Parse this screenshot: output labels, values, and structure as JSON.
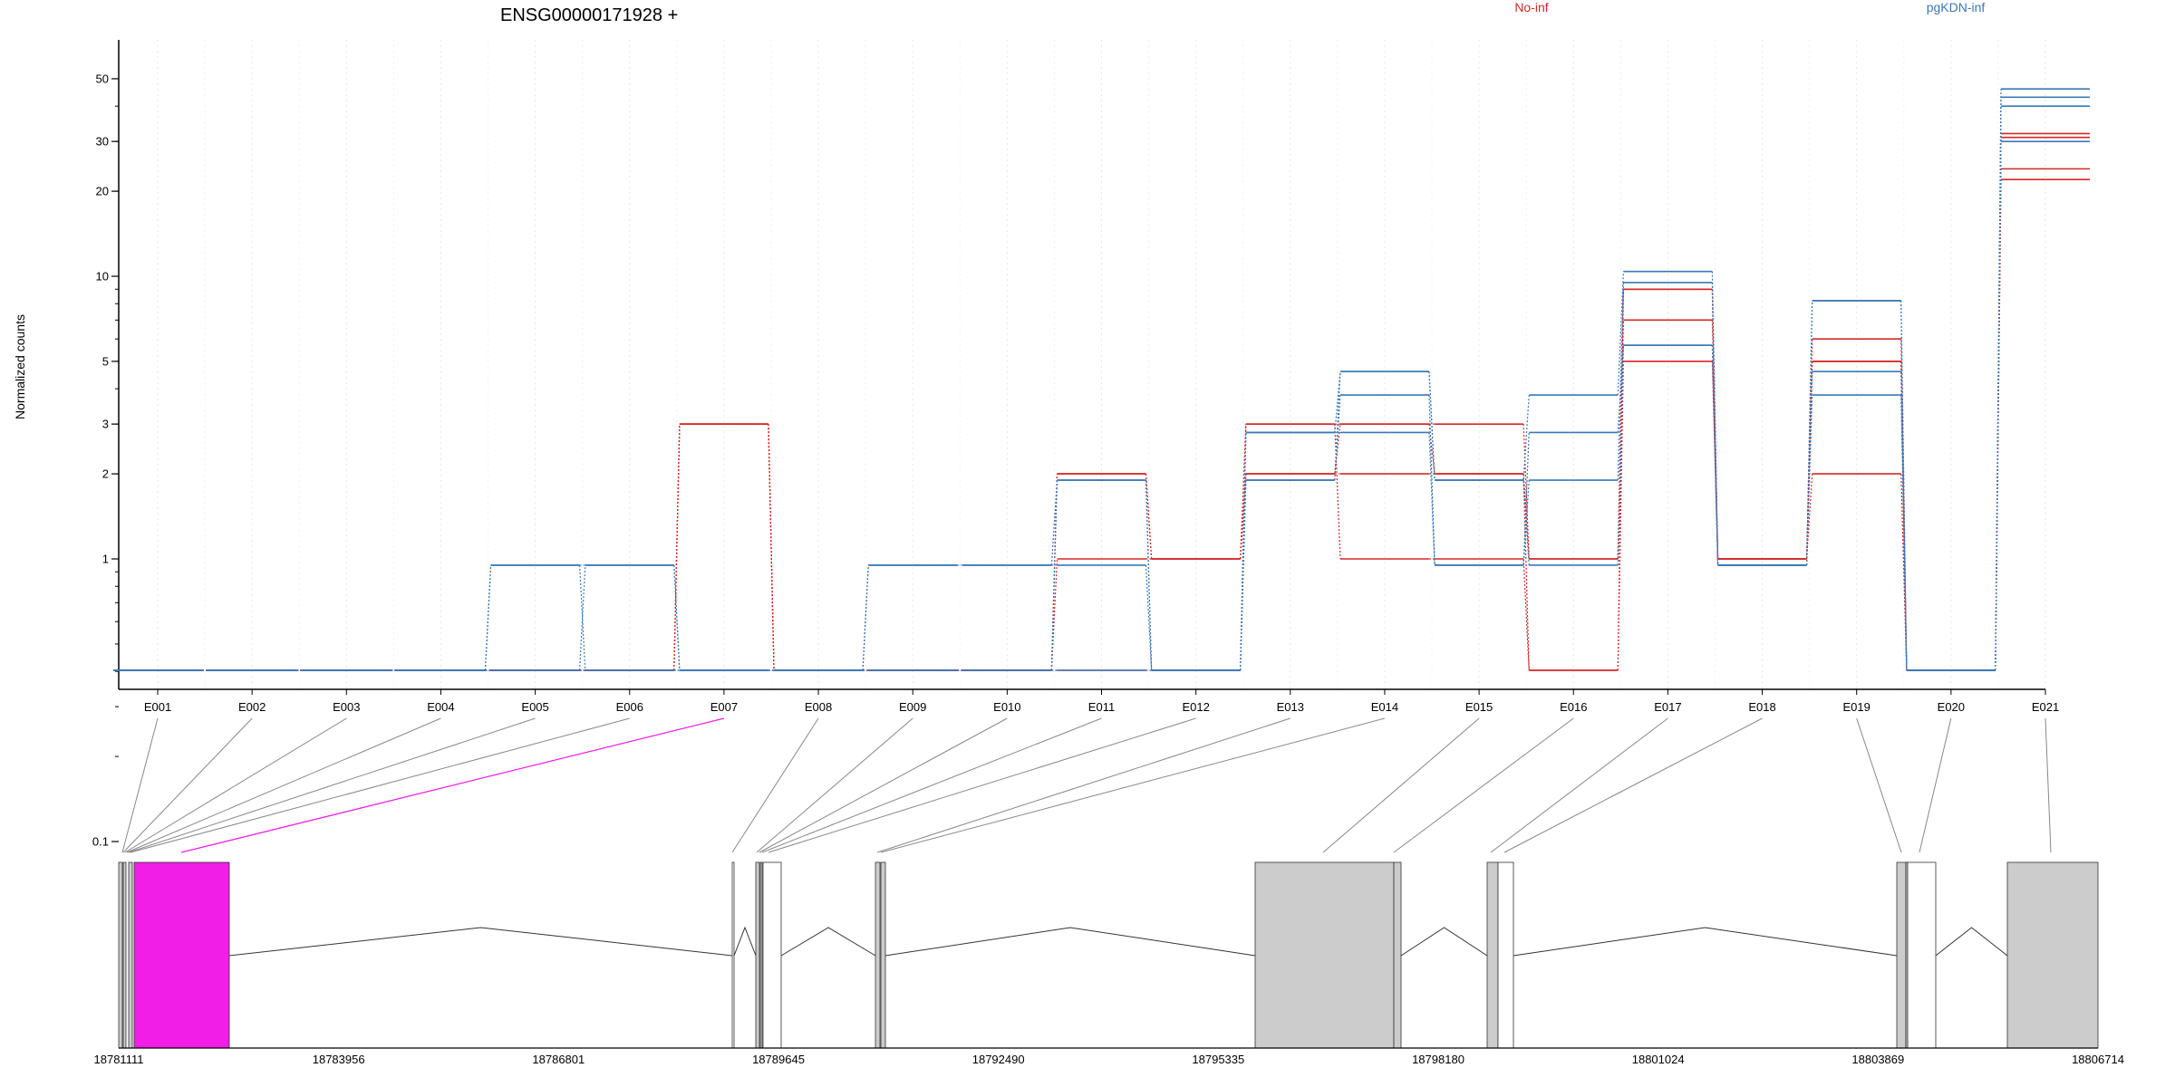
{
  "chart_data": {
    "type": "line",
    "title": "ENSG00000171928 +",
    "ylabel": "Normalized counts",
    "xlabel": "",
    "y_scale": "log",
    "y_ticks": [
      0.1,
      1,
      2,
      3,
      5,
      10,
      20,
      30,
      50
    ],
    "y_tick_labels": [
      "0.1",
      "1",
      "2",
      "3",
      "5",
      "10",
      "20",
      "30",
      "50"
    ],
    "grid": "vertical dotted lines at each exon",
    "legend_placement": "top",
    "categories": [
      "E001",
      "E002",
      "E003",
      "E004",
      "E005",
      "E006",
      "E007",
      "E008",
      "E009",
      "E010",
      "E011",
      "E012",
      "E013",
      "E014",
      "E015",
      "E016",
      "E017",
      "E018",
      "E019",
      "E020",
      "E021"
    ],
    "groups": [
      {
        "name": "No-inf",
        "color": "#d62728"
      },
      {
        "name": "pgKDN-inf",
        "color": "#3a78b5"
      }
    ],
    "series": [
      {
        "group": "No-inf",
        "values": [
          0.08,
          0.08,
          0.08,
          0.08,
          0.08,
          0.08,
          3.0,
          0.08,
          0.08,
          0.08,
          2.0,
          1.0,
          3.0,
          3.0,
          3.0,
          1.0,
          9.0,
          1.0,
          5.0,
          0.08,
          32.0
        ]
      },
      {
        "group": "No-inf",
        "values": [
          0.08,
          0.08,
          0.08,
          0.08,
          0.08,
          0.08,
          3.0,
          0.08,
          0.08,
          0.08,
          1.0,
          1.0,
          2.0,
          2.0,
          2.0,
          1.0,
          7.0,
          1.0,
          6.0,
          0.08,
          31.0
        ]
      },
      {
        "group": "No-inf",
        "values": [
          0.08,
          0.08,
          0.08,
          0.08,
          0.08,
          0.08,
          3.0,
          0.08,
          0.08,
          0.08,
          0.08,
          0.08,
          3.0,
          1.0,
          1.0,
          0.08,
          5.0,
          1.0,
          2.0,
          0.08,
          24.0
        ]
      },
      {
        "group": "No-inf",
        "values": [
          0.08,
          0.08,
          0.08,
          0.08,
          0.08,
          0.08,
          3.0,
          0.08,
          0.08,
          0.08,
          2.0,
          1.0,
          2.0,
          3.0,
          2.0,
          0.08,
          9.0,
          1.0,
          5.0,
          0.08,
          22.0
        ]
      },
      {
        "group": "pgKDN-inf",
        "values": [
          0.08,
          0.08,
          0.08,
          0.08,
          0.95,
          0.95,
          0.08,
          0.08,
          0.95,
          0.95,
          1.9,
          0.08,
          2.8,
          4.6,
          1.9,
          3.8,
          10.4,
          0.95,
          8.2,
          0.08,
          46.0
        ]
      },
      {
        "group": "pgKDN-inf",
        "values": [
          0.08,
          0.08,
          0.08,
          0.08,
          0.95,
          0.08,
          0.08,
          0.08,
          0.95,
          0.95,
          0.95,
          0.08,
          1.9,
          3.8,
          0.95,
          2.8,
          5.7,
          0.95,
          4.6,
          0.08,
          40.0
        ]
      },
      {
        "group": "pgKDN-inf",
        "values": [
          0.08,
          0.08,
          0.08,
          0.08,
          0.08,
          0.95,
          0.08,
          0.08,
          0.08,
          0.08,
          1.9,
          0.08,
          2.8,
          2.8,
          0.95,
          1.9,
          9.5,
          0.95,
          3.8,
          0.08,
          43.0
        ]
      },
      {
        "group": "pgKDN-inf",
        "values": [
          0.08,
          0.08,
          0.08,
          0.08,
          0.08,
          0.08,
          0.08,
          0.08,
          0.08,
          0.08,
          0.08,
          0.08,
          1.9,
          4.6,
          1.9,
          0.95,
          5.7,
          0.95,
          8.2,
          0.08,
          30.0
        ]
      }
    ],
    "gene_model": {
      "genomic_range": [
        18781111,
        18806714
      ],
      "tick_labels": [
        "18781111",
        "18783956",
        "18786801",
        "18789645",
        "18792490",
        "18795335",
        "18798180",
        "18801024",
        "18803869",
        "18806714"
      ],
      "highlighted_exon": "E007",
      "highlight_color": "#f01ee6",
      "exon_fill_color": "#cccccc"
    }
  }
}
